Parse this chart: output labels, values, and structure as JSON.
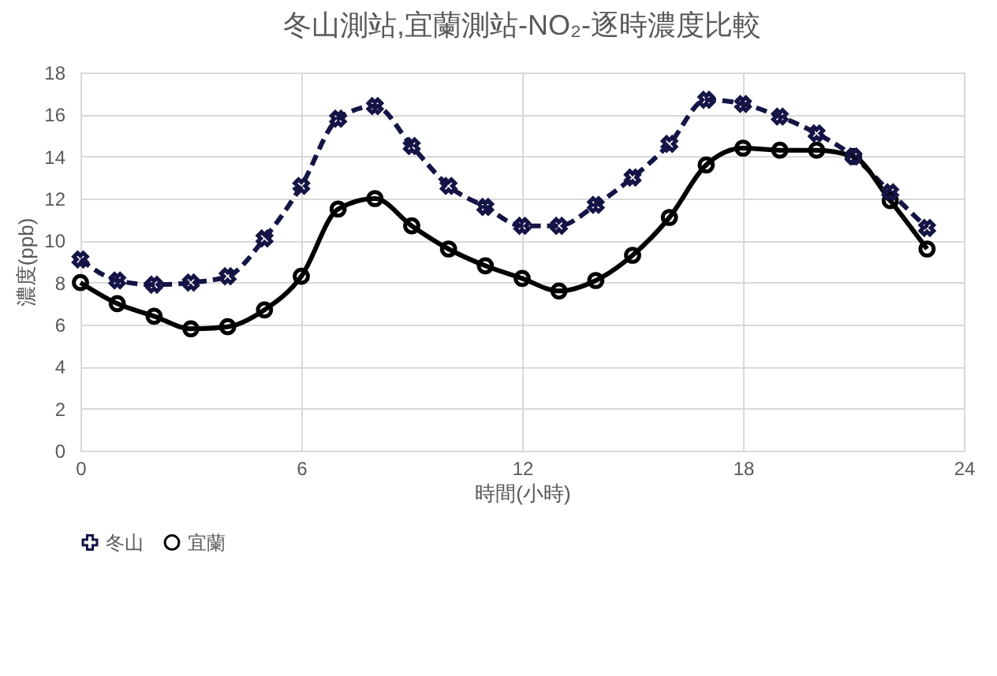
{
  "chart_data": {
    "type": "line",
    "title": "冬山測站,宜蘭測站-NO₂-逐時濃度比較",
    "xlabel": "時間(小時)",
    "ylabel": "濃度(ppb)",
    "x": [
      0,
      1,
      2,
      3,
      4,
      5,
      6,
      7,
      8,
      9,
      10,
      11,
      12,
      13,
      14,
      15,
      16,
      17,
      18,
      19,
      20,
      21,
      22,
      23
    ],
    "series": [
      {
        "name": "冬山",
        "color": "#141446",
        "marker": "cross",
        "line_style": "dashed",
        "values": [
          9.1,
          8.1,
          7.9,
          8.0,
          8.3,
          10.1,
          12.6,
          15.8,
          16.4,
          14.5,
          12.6,
          11.6,
          10.7,
          10.7,
          11.7,
          13.0,
          14.6,
          16.7,
          16.5,
          15.9,
          15.1,
          14.0,
          12.3,
          10.6
        ]
      },
      {
        "name": "宜蘭",
        "color": "#000000",
        "marker": "circle",
        "line_style": "solid",
        "values": [
          8.0,
          7.0,
          6.4,
          5.8,
          5.9,
          6.7,
          8.3,
          11.5,
          12.0,
          10.7,
          9.6,
          8.8,
          8.2,
          7.6,
          8.1,
          9.3,
          11.1,
          13.6,
          14.4,
          14.3,
          14.3,
          14.0,
          11.9,
          9.6
        ]
      }
    ],
    "xlim": [
      0,
      24
    ],
    "xticks": [
      0,
      6,
      12,
      18,
      24
    ],
    "ylim": [
      0,
      18
    ],
    "yticks": [
      0,
      2,
      4,
      6,
      8,
      10,
      12,
      14,
      16,
      18
    ],
    "grid": true,
    "legend": "bottom"
  }
}
